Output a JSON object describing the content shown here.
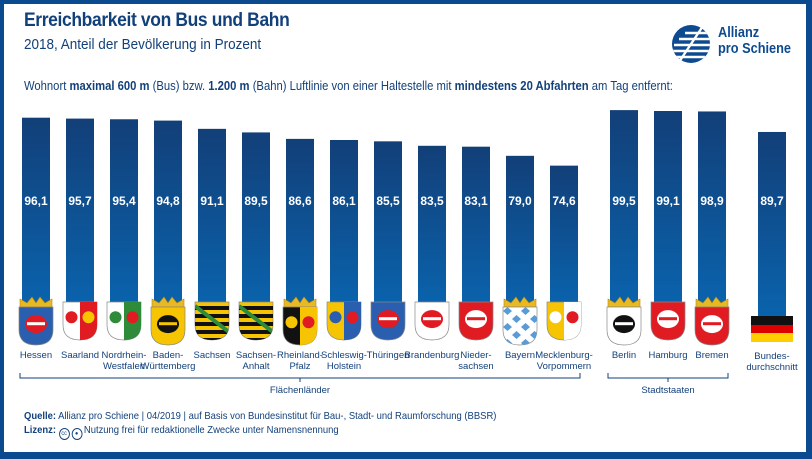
{
  "header": {
    "title": "Erreichbarkeit von Bus und Bahn",
    "subtitle": "2018, Anteil der Bevölkerung in Prozent",
    "description": {
      "p1": "Wohnort ",
      "b1": "maximal 600 m",
      "p2": " (Bus) bzw. ",
      "b2": "1.200 m",
      "p3": " (Bahn) Luftlinie von einer Haltestelle mit ",
      "b3": "mindestens 20 Abfahrten",
      "p4": " am Tag entfernt:"
    }
  },
  "logo": {
    "line1": "Allianz",
    "line2": "pro Schiene",
    "icon": "allianz-pro-schiene-logo-icon"
  },
  "colors": {
    "frame": "#0b4a8e",
    "bar_top": "#123f78",
    "bar_bottom": "#0a63ad",
    "text": "#12407a"
  },
  "chart_data": {
    "type": "bar",
    "title": "Erreichbarkeit von Bus und Bahn",
    "subtitle": "2018, Anteil der Bevölkerung in Prozent",
    "xlabel": "",
    "ylabel": "Anteil der Bevölkerung in Prozent",
    "ylim": [
      0,
      100
    ],
    "grid": false,
    "legend": "none",
    "categories": [
      {
        "name": "Hessen",
        "lines": [
          "Hessen"
        ],
        "value": 96.1,
        "label": "96,1",
        "group": "Flächenländer",
        "icon": "hessen-coat-of-arms-icon"
      },
      {
        "name": "Saarland",
        "lines": [
          "Saarland"
        ],
        "value": 95.7,
        "label": "95,7",
        "group": "Flächenländer",
        "icon": "saarland-coat-of-arms-icon"
      },
      {
        "name": "Nordrhein-Westfalen",
        "lines": [
          "Nordrhein-",
          "Westfalen"
        ],
        "value": 95.4,
        "label": "95,4",
        "group": "Flächenländer",
        "icon": "nrw-coat-of-arms-icon"
      },
      {
        "name": "Baden-Württemberg",
        "lines": [
          "Baden-",
          "Württemberg"
        ],
        "value": 94.8,
        "label": "94,8",
        "group": "Flächenländer",
        "icon": "bw-coat-of-arms-icon"
      },
      {
        "name": "Sachsen",
        "lines": [
          "Sachsen"
        ],
        "value": 91.1,
        "label": "91,1",
        "group": "Flächenländer",
        "icon": "sachsen-coat-of-arms-icon"
      },
      {
        "name": "Sachsen-Anhalt",
        "lines": [
          "Sachsen-",
          "Anhalt"
        ],
        "value": 89.5,
        "label": "89,5",
        "group": "Flächenländer",
        "icon": "sachsen-anhalt-coat-of-arms-icon"
      },
      {
        "name": "Rheinland-Pfalz",
        "lines": [
          "Rheinland-",
          "Pfalz"
        ],
        "value": 86.6,
        "label": "86,6",
        "group": "Flächenländer",
        "icon": "rlp-coat-of-arms-icon"
      },
      {
        "name": "Schleswig-Holstein",
        "lines": [
          "Schleswig-",
          "Holstein"
        ],
        "value": 86.1,
        "label": "86,1",
        "group": "Flächenländer",
        "icon": "sh-coat-of-arms-icon"
      },
      {
        "name": "Thüringen",
        "lines": [
          "Thüringen"
        ],
        "value": 85.5,
        "label": "85,5",
        "group": "Flächenländer",
        "icon": "thueringen-coat-of-arms-icon"
      },
      {
        "name": "Brandenburg",
        "lines": [
          "Brandenburg"
        ],
        "value": 83.5,
        "label": "83,5",
        "group": "Flächenländer",
        "icon": "brandenburg-coat-of-arms-icon"
      },
      {
        "name": "Niedersachsen",
        "lines": [
          "Nieder-",
          "sachsen"
        ],
        "value": 83.1,
        "label": "83,1",
        "group": "Flächenländer",
        "icon": "niedersachsen-coat-of-arms-icon"
      },
      {
        "name": "Bayern",
        "lines": [
          "Bayern"
        ],
        "value": 79.0,
        "label": "79,0",
        "group": "Flächenländer",
        "icon": "bayern-coat-of-arms-icon"
      },
      {
        "name": "Mecklenburg-Vorpommern",
        "lines": [
          "Mecklenburg-",
          "Vorpommern"
        ],
        "value": 74.6,
        "label": "74,6",
        "group": "Flächenländer",
        "icon": "mv-coat-of-arms-icon"
      },
      {
        "name": "Berlin",
        "lines": [
          "Berlin"
        ],
        "value": 99.5,
        "label": "99,5",
        "group": "Stadtstaaten",
        "icon": "berlin-coat-of-arms-icon"
      },
      {
        "name": "Hamburg",
        "lines": [
          "Hamburg"
        ],
        "value": 99.1,
        "label": "99,1",
        "group": "Stadtstaaten",
        "icon": "hamburg-coat-of-arms-icon"
      },
      {
        "name": "Bremen",
        "lines": [
          "Bremen"
        ],
        "value": 98.9,
        "label": "98,9",
        "group": "Stadtstaaten",
        "icon": "bremen-coat-of-arms-icon"
      },
      {
        "name": "Bundesdurchschnitt",
        "lines": [
          "Bundes-",
          "durchschnitt"
        ],
        "value": 89.7,
        "label": "89,7",
        "group": "",
        "icon": "germany-flag-icon"
      }
    ],
    "groups": [
      {
        "name": "Flächenländer",
        "from": 0,
        "to": 12
      },
      {
        "name": "Stadtstaaten",
        "from": 13,
        "to": 15
      }
    ]
  },
  "footer": {
    "source_label": "Quelle:",
    "source_text": " Allianz pro Schiene | 04/2019 | auf Basis von Bundesinstitut für Bau-, Stadt- und Raumforschung (BBSR)",
    "license_label": "Lizenz:",
    "license_icons": [
      "cc-icon",
      "by-attribution-icon"
    ],
    "license_text": "Nutzung frei für redaktionelle Zwecke unter Namensnennung"
  }
}
